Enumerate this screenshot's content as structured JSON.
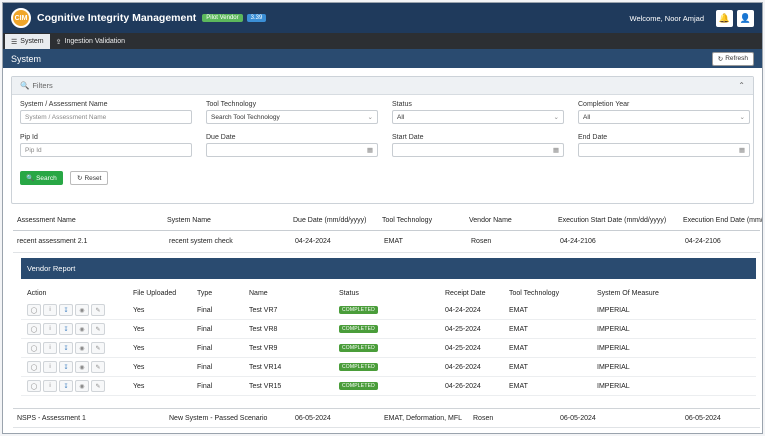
{
  "header": {
    "logo_text": "CIM",
    "title": "Cognitive Integrity Management",
    "badge_env": "Pilot Vendor",
    "badge_version": "3.39",
    "welcome": "Welcome, Noor Amjad",
    "icons": [
      "bell-icon",
      "user-icon"
    ]
  },
  "tabs": [
    {
      "label": "System",
      "icon": "database-icon",
      "active": true
    },
    {
      "label": "Ingestion Validation",
      "icon": "upload-icon",
      "active": false
    }
  ],
  "section": {
    "title": "System",
    "refresh_label": "Refresh"
  },
  "filters": {
    "title": "Filters",
    "fields": {
      "system_name": {
        "label": "System / Assessment Name",
        "placeholder": "System / Assessment Name"
      },
      "tool_technology": {
        "label": "Tool Technology",
        "value": "Search Tool Technology"
      },
      "status": {
        "label": "Status",
        "value": "All"
      },
      "completion_year": {
        "label": "Completion Year",
        "value": "All"
      },
      "pip_id": {
        "label": "Pip Id",
        "placeholder": "Pip Id"
      },
      "due_date": {
        "label": "Due Date",
        "placeholder": ""
      },
      "start_date": {
        "label": "Start Date",
        "placeholder": ""
      },
      "end_date": {
        "label": "End Date",
        "placeholder": ""
      }
    },
    "search_label": "Search",
    "reset_label": "Reset"
  },
  "table": {
    "columns": [
      "Assessment Name",
      "System Name",
      "Due Date (mm/dd/yyyy)",
      "Tool Technology",
      "Vendor Name",
      "Execution Start Date (mm/dd/yyyy)",
      "Execution End Date (mm/dd/"
    ],
    "rows": [
      [
        "recent assessment 2.1",
        "recent system check",
        "04-24-2024",
        "EMAT",
        "Rosen",
        "04-24-2106",
        "04-24-2106"
      ],
      [
        "NSPS - Assessment 1",
        "New System - Passed Scenario",
        "06-05-2024",
        "EMAT, Deformation, MFL",
        "Rosen",
        "06-05-2024",
        "06-05-2024"
      ]
    ]
  },
  "vendor_report": {
    "title": "Vendor Report",
    "columns": [
      "Action",
      "File Uploaded",
      "Type",
      "Name",
      "Status",
      "Receipt Date",
      "Tool Technology",
      "System Of Measure"
    ],
    "rows": [
      [
        "Yes",
        "Final",
        "Test VR7",
        "COMPLETED",
        "04-24-2024",
        "EMAT",
        "IMPERIAL"
      ],
      [
        "Yes",
        "Final",
        "Test VR8",
        "COMPLETED",
        "04-25-2024",
        "EMAT",
        "IMPERIAL"
      ],
      [
        "Yes",
        "Final",
        "Test VR9",
        "COMPLETED",
        "04-25-2024",
        "EMAT",
        "IMPERIAL"
      ],
      [
        "Yes",
        "Final",
        "Test VR14",
        "COMPLETED",
        "04-26-2024",
        "EMAT",
        "IMPERIAL"
      ],
      [
        "Yes",
        "Final",
        "Test VR15",
        "COMPLETED",
        "04-26-2024",
        "EMAT",
        "IMPERIAL"
      ]
    ],
    "action_icons": [
      "refresh-icon",
      "info-icon",
      "download-icon",
      "view-icon",
      "edit-icon"
    ]
  }
}
